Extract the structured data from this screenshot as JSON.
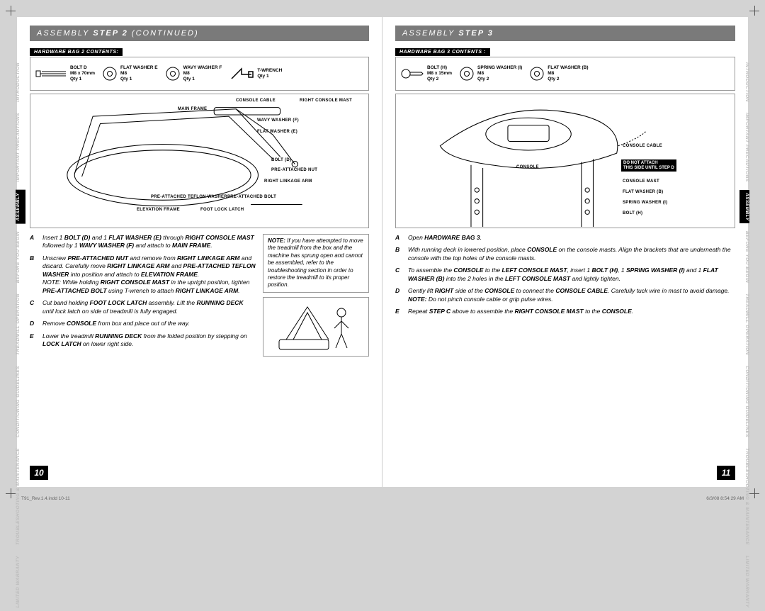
{
  "colors": {
    "page_bg": "#ffffff",
    "spread_bg": "#d3d3d3",
    "titlebar_bg": "#7a7a7a",
    "titlebar_fg": "#ffffff",
    "black": "#000000",
    "rule": "#999999",
    "tab_inactive": "#bdbdbd"
  },
  "left": {
    "title_prefix": "ASSEMBLY",
    "title_main": "STEP 2",
    "title_suffix": "(CONTINUED)",
    "hw_label": "HARDWARE BAG 2 CONTENTS:",
    "hw_items": [
      {
        "name": "BOLT D",
        "dim": "M8 x 70mm",
        "qty": "Qty 1"
      },
      {
        "name": "FLAT WASHER E",
        "dim": "M8",
        "qty": "Qty 1"
      },
      {
        "name": "WAVY WASHER F",
        "dim": "M8",
        "qty": "Qty 1"
      },
      {
        "name": "T-WRENCH",
        "dim": "",
        "qty": "Qty 1"
      }
    ],
    "callouts": [
      "MAIN FRAME",
      "CONSOLE CABLE",
      "RIGHT CONSOLE MAST",
      "WAVY WASHER (F)",
      "FLAT WASHER (E)",
      "BOLT (D)",
      "PRE-ATTACHED NUT",
      "RIGHT LINKAGE ARM",
      "PRE-ATTACHED TEFLON WASHER",
      "PRE-ATTACHED BOLT",
      "ELEVATION FRAME",
      "FOOT LOCK LATCH"
    ],
    "steps": [
      {
        "l": "A",
        "t": "Insert 1 <b>BOLT (D)</b> and 1 <b>FLAT WASHER (E)</b> through <b>RIGHT CONSOLE MAST</b> followed by 1 <b>WAVY WASHER (F)</b> and attach to <b>MAIN FRAME</b>."
      },
      {
        "l": "B",
        "t": "Unscrew <b>PRE-ATTACHED NUT</b> and remove from <b>RIGHT LINKAGE ARM</b> and discard. Carefully move <b>RIGHT LINKAGE ARM</b> and <b>PRE-ATTACHED TEFLON WASHER</b> into position and attach to <b>ELEVATION FRAME</b>.<br>NOTE: While holding <b>RIGHT CONSOLE MAST</b> in the upright position, tighten <b>PRE-ATTACHED BOLT</b> using T-wrench to attach <b>RIGHT LINKAGE ARM</b>."
      },
      {
        "l": "C",
        "t": "Cut band holding <b>FOOT LOCK LATCH</b> assembly. Lift the <b>RUNNING DECK</b> until lock latch on side of treadmill is fully engaged."
      },
      {
        "l": "D",
        "t": "Remove <b>CONSOLE</b> from box and place out of the way."
      },
      {
        "l": "E",
        "t": "Lower the treadmill <b>RUNNING DECK</b> from the folded position by stepping on <b>LOCK LATCH</b> on lower right side."
      }
    ],
    "note": "<b>NOTE:</b> If you have attempted to move the treadmill from the box and the machine has sprung open and cannot be assembled, refer to the troubleshooting section in order to restore the treadmill to its proper position.",
    "page_num": "10"
  },
  "right": {
    "title_prefix": "ASSEMBLY",
    "title_main": "STEP 3",
    "hw_label": "HARDWARE BAG 3 CONTENTS :",
    "hw_items": [
      {
        "name": "BOLT (H)",
        "dim": "M8 x 15mm",
        "qty": "Qty 2"
      },
      {
        "name": "SPRING WASHER (I)",
        "dim": "M8",
        "qty": "Qty 2"
      },
      {
        "name": "FLAT WASHER (B)",
        "dim": "M8",
        "qty": "Qty 2"
      }
    ],
    "callouts": [
      "CONSOLE CABLE",
      "CONSOLE",
      "CONSOLE MAST",
      "FLAT WASHER (B)",
      "SPRING WASHER (I)",
      "BOLT (H)"
    ],
    "black_note": [
      "DO NOT ATTACH",
      "THIS SIDE UNTIL STEP D"
    ],
    "steps": [
      {
        "l": "A",
        "t": "Open <b>HARDWARE BAG 3</b>."
      },
      {
        "l": "B",
        "t": "With running deck in lowered position, place <b>CONSOLE</b> on the console masts. Align the brackets that are underneath the console with the top holes of the console masts."
      },
      {
        "l": "C",
        "t": "To assemble the <b>CONSOLE</b> to the <b>LEFT CONSOLE MAST</b>, insert 1 <b>BOLT (H)</b>, 1 <b>SPRING WASHER (I)</b> and 1 <b>FLAT WASHER (B)</b> into the 2 holes in the <b>LEFT CONSOLE MAST</b> and lightly tighten."
      },
      {
        "l": "D",
        "t": "Gently lift <b>RIGHT</b> side of the <b>CONSOLE</b> to connect the <b>CONSOLE CABLE</b>. Carefully tuck wire in mast to avoid damage. <b>NOTE:</b> Do not pinch console cable or grip pulse wires."
      },
      {
        "l": "E",
        "t": "Repeat <b>STEP C</b> above to assemble the <b>RIGHT CONSOLE MAST</b> to the <b>CONSOLE</b>."
      }
    ],
    "page_num": "11"
  },
  "tabs": [
    "INTRODUCTION",
    "IMPORTANT PRECAUTIONS",
    "ASSEMBLY",
    "BEFORE YOU BEGIN",
    "TREADMILL OPERATION",
    "CONDITIONING GUIDELINES",
    "TROUBLESHOOTING & MAINTENANCE",
    "LIMITED WARRANTY"
  ],
  "active_tab_index": 2,
  "footer": {
    "left": "T91_Rev.1.4.indd   10-11",
    "right": "6/3/08   8:54:29 AM"
  }
}
